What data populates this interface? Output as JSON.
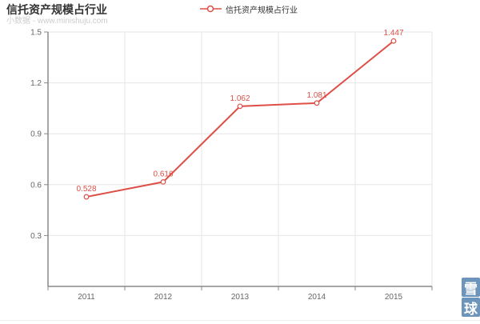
{
  "header": {
    "title": "信托资产规模占行业",
    "subtitle": "小数据 - www.minishuju.com"
  },
  "legend": {
    "label": "信托资产规模占行业"
  },
  "logo": {
    "chars": [
      "雪",
      "球"
    ],
    "bg_color": "#6d94ba"
  },
  "colors": {
    "series": "#dd4f47",
    "grid": "#e6e6e6",
    "axis": "#888888",
    "axis_label": "#666666",
    "title": "#333333",
    "subtitle": "#cccccc"
  },
  "chart_data": {
    "type": "line",
    "title": "信托资产规模占行业",
    "categories": [
      "2011",
      "2012",
      "2013",
      "2014",
      "2015"
    ],
    "series": [
      {
        "name": "信托资产规模占行业",
        "values": [
          0.528,
          0.616,
          1.062,
          1.081,
          1.447
        ]
      }
    ],
    "data_labels": [
      "0.528",
      "0.616",
      "1.062",
      "1.081",
      "1.447"
    ],
    "xlabel": "",
    "ylabel": "",
    "ylim": [
      0,
      1.5
    ],
    "yticks": [
      0.3,
      0.6,
      0.9,
      1.2,
      1.5
    ],
    "grid": true,
    "legend_position": "top-center",
    "marker": "open-circle"
  }
}
